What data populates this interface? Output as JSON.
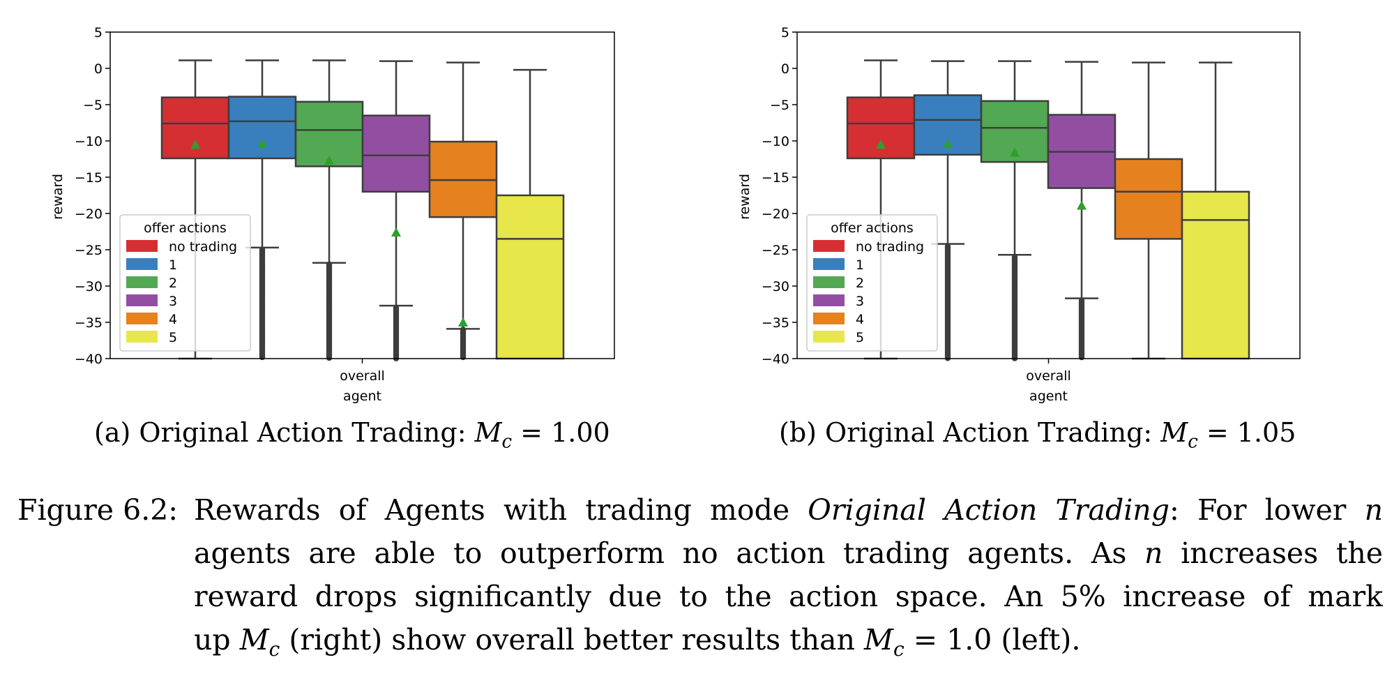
{
  "chart_data": [
    {
      "type": "box",
      "xlabel": "agent",
      "ylabel": "reward",
      "ylim": [
        -40,
        5
      ],
      "yticks": [
        5,
        0,
        -5,
        -10,
        -15,
        -20,
        -25,
        -30,
        -35,
        -40
      ],
      "category": "overall",
      "legend": {
        "title": "offer actions",
        "placement": "lower-left"
      },
      "series": [
        {
          "name": "no trading",
          "color": "#d62f33",
          "whisker_high": 1.1,
          "q3": -4.0,
          "median": -7.6,
          "q1": -12.4,
          "whisker_low": -40,
          "mean": -10.5,
          "fliers": []
        },
        {
          "name": "1",
          "color": "#3a7fbd",
          "whisker_high": 1.1,
          "q3": -3.9,
          "median": -7.3,
          "q1": -12.4,
          "whisker_low": -24.7,
          "mean": -10.4,
          "fliers": [
            -25,
            -40
          ]
        },
        {
          "name": "2",
          "color": "#53a853",
          "whisker_high": 1.1,
          "q3": -4.6,
          "median": -8.5,
          "q1": -13.5,
          "whisker_low": -26.8,
          "mean": -12.7,
          "fliers": [
            -27,
            -40
          ]
        },
        {
          "name": "3",
          "color": "#924fa2",
          "whisker_high": 1.0,
          "q3": -6.5,
          "median": -12.0,
          "q1": -17.0,
          "whisker_low": -32.7,
          "mean": -22.6,
          "fliers": [
            -33,
            -40
          ]
        },
        {
          "name": "4",
          "color": "#e5811f",
          "whisker_high": 0.8,
          "q3": -10.1,
          "median": -15.4,
          "q1": -20.5,
          "whisker_low": -35.9,
          "mean": -35.0,
          "fliers": [
            -36,
            -40
          ]
        },
        {
          "name": "5",
          "color": "#e7e64a",
          "whisker_high": -0.2,
          "q3": -17.5,
          "median": -23.5,
          "q1": -40,
          "whisker_low": -40,
          "mean": null,
          "fliers": []
        }
      ]
    },
    {
      "type": "box",
      "xlabel": "agent",
      "ylabel": "reward",
      "ylim": [
        -40,
        5
      ],
      "yticks": [
        5,
        0,
        -5,
        -10,
        -15,
        -20,
        -25,
        -30,
        -35,
        -40
      ],
      "category": "overall",
      "legend": {
        "title": "offer actions",
        "placement": "lower-left"
      },
      "series": [
        {
          "name": "no trading",
          "color": "#d62f33",
          "whisker_high": 1.1,
          "q3": -4.0,
          "median": -7.6,
          "q1": -12.4,
          "whisker_low": -40,
          "mean": -10.5,
          "fliers": []
        },
        {
          "name": "1",
          "color": "#3a7fbd",
          "whisker_high": 1.0,
          "q3": -3.7,
          "median": -7.1,
          "q1": -11.9,
          "whisker_low": -24.2,
          "mean": -10.4,
          "fliers": [
            -24.5,
            -40
          ]
        },
        {
          "name": "2",
          "color": "#53a853",
          "whisker_high": 1.0,
          "q3": -4.5,
          "median": -8.2,
          "q1": -12.9,
          "whisker_low": -25.7,
          "mean": -11.6,
          "fliers": [
            -26,
            -40
          ]
        },
        {
          "name": "3",
          "color": "#924fa2",
          "whisker_high": 0.9,
          "q3": -6.4,
          "median": -11.5,
          "q1": -16.5,
          "whisker_low": -31.7,
          "mean": -18.9,
          "fliers": [
            -32,
            -40
          ]
        },
        {
          "name": "4",
          "color": "#e5811f",
          "whisker_high": 0.8,
          "q3": -12.5,
          "median": -17.0,
          "q1": -23.5,
          "whisker_low": -40,
          "mean": null,
          "fliers": []
        },
        {
          "name": "5",
          "color": "#e7e64a",
          "whisker_high": 0.8,
          "q3": -17.0,
          "median": -20.9,
          "q1": -40,
          "whisker_low": -40,
          "mean": null,
          "fliers": []
        }
      ]
    }
  ],
  "subcaptions": [
    {
      "label": "(a) Original Action Trading: ",
      "math_var": "M",
      "math_sub": "c",
      "math_rest": " = 1.00"
    },
    {
      "label": "(b) Original Action Trading: ",
      "math_var": "M",
      "math_sub": "c",
      "math_rest": " = 1.05"
    }
  ],
  "caption": {
    "label": "Figure 6.2:",
    "l1a": "Rewards of Agents with trading mode ",
    "l1b": "Original Action Trading",
    "l1c": ": For lower ",
    "l1n": "n",
    "l2a": "agents are able to outperform no action trading agents. As ",
    "l2n": "n",
    "l2b": " increases the",
    "l3": "reward drops significantly due to the action space. An 5% increase of mark",
    "l4a": "up ",
    "l4m": "M",
    "l4s": "c",
    "l4b": " (right) show overall better results than ",
    "l4m2": "M",
    "l4s2": "c",
    "l4c": " = 1.0 (left)."
  }
}
